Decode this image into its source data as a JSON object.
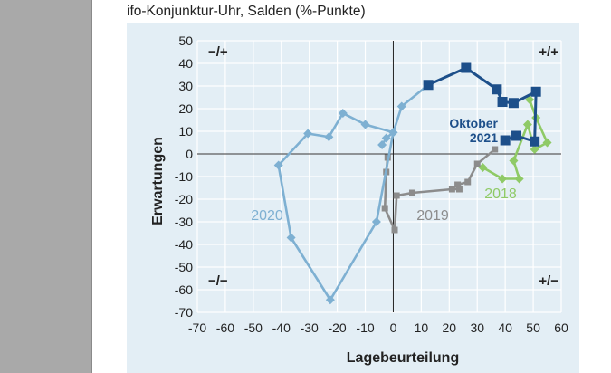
{
  "chart_data": {
    "type": "line",
    "title": "ifo-Konjunktur-Uhr, Salden (%-Punkte)",
    "xlabel": "Lagebeurteilung",
    "ylabel": "Erwartungen",
    "xlim": [
      -70,
      60
    ],
    "ylim": [
      -70,
      50
    ],
    "xticks": [
      "-70",
      "-60",
      "-50",
      "-40",
      "-30",
      "-20",
      "-10",
      "0",
      "10",
      "20",
      "30",
      "40",
      "50",
      "60"
    ],
    "yticks": [
      "50",
      "40",
      "30",
      "20",
      "10",
      "0",
      "-10",
      "-20",
      "-30",
      "-40",
      "-50",
      "-60",
      "-70"
    ],
    "grid": true,
    "quadrant_labels": [
      "−/+",
      "+/+",
      "−/−",
      "+/−"
    ],
    "annotation": "Oktober 2021",
    "series": [
      {
        "name": "2018",
        "color": "#8fca66",
        "marker": "diamond",
        "points": [
          [
            48.7,
            24
          ],
          [
            51,
            16
          ],
          [
            55,
            5
          ],
          [
            50.5,
            2
          ],
          [
            48,
            13
          ],
          [
            43,
            -3
          ],
          [
            45,
            -11
          ],
          [
            39,
            -11
          ],
          [
            32,
            -6
          ]
        ]
      },
      {
        "name": "2019",
        "color": "#8c8c8c",
        "marker": "square",
        "points": [
          [
            36.3,
            2
          ],
          [
            30,
            -4.4
          ],
          [
            26.6,
            -12.4
          ],
          [
            23,
            -13.6
          ],
          [
            23.6,
            -15.6
          ],
          [
            21,
            -15.6
          ],
          [
            6.8,
            -17.2
          ],
          [
            1.2,
            -18.4
          ],
          [
            0.5,
            -33.6
          ],
          [
            -3,
            -24
          ],
          [
            -2.5,
            -8
          ],
          [
            -2,
            -1.6
          ]
        ]
      },
      {
        "name": "2020",
        "color": "#7eb0d2",
        "marker": "diamond",
        "points": [
          [
            -4,
            4
          ],
          [
            -2.5,
            7
          ],
          [
            0,
            9.5
          ],
          [
            -10,
            13
          ],
          [
            -18,
            18
          ],
          [
            -23,
            7.5
          ],
          [
            -30.5,
            9
          ],
          [
            -41,
            -5
          ],
          [
            -36.5,
            -37
          ],
          [
            -22.5,
            -64.5
          ],
          [
            -6,
            -30
          ],
          [
            0,
            9.5
          ],
          [
            3,
            21
          ],
          [
            12.5,
            30.5
          ]
        ]
      },
      {
        "name": "2021",
        "color": "#1d4f8a",
        "marker": "square",
        "points": [
          [
            12.5,
            30.5
          ],
          [
            26,
            38
          ],
          [
            37,
            28.5
          ],
          [
            39,
            23
          ],
          [
            43,
            22.5
          ],
          [
            51,
            27.5
          ],
          [
            50.5,
            5.5
          ],
          [
            44,
            8
          ],
          [
            40,
            6
          ]
        ]
      }
    ]
  }
}
